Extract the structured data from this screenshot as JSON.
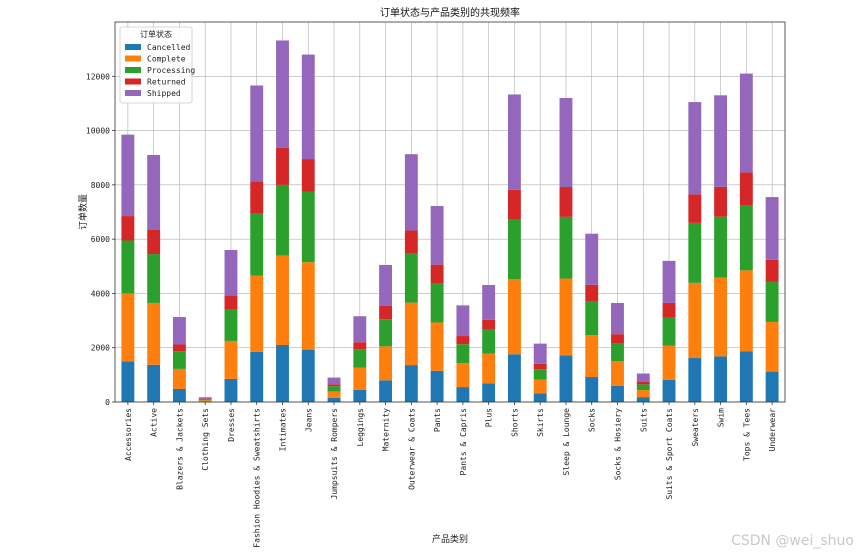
{
  "watermark": "CSDN @wei_shuo",
  "chart_data": {
    "type": "bar",
    "stacked": true,
    "title": "订单状态与产品类别的共现频率",
    "xlabel": "产品类别",
    "ylabel": "订单数量",
    "ylim": [
      0,
      14000
    ],
    "yticks": [
      0,
      2000,
      4000,
      6000,
      8000,
      10000,
      12000
    ],
    "grid": true,
    "legend_title": "订单状态",
    "legend_position": "top-left",
    "categories": [
      "Accessories",
      "Active",
      "Blazers & Jackets",
      "Clothing Sets",
      "Dresses",
      "Fashion Hoodies & Sweatshirts",
      "Intimates",
      "Jeans",
      "Jumpsuits & Rompers",
      "Leggings",
      "Maternity",
      "Outerwear & Coats",
      "Pants",
      "Pants & Capris",
      "Plus",
      "Shorts",
      "Skirts",
      "Sleep & Lounge",
      "Socks",
      "Socks & Hosiery",
      "Suits",
      "Suits & Sport Coats",
      "Sweaters",
      "Swim",
      "Tops & Tees",
      "Underwear"
    ],
    "series": [
      {
        "name": "Cancelled",
        "color": "#1f77b4",
        "values": [
          1500,
          1370,
          480,
          25,
          850,
          1850,
          2100,
          1930,
          150,
          450,
          800,
          1360,
          1150,
          550,
          680,
          1760,
          320,
          1720,
          920,
          600,
          180,
          820,
          1620,
          1680,
          1860,
          1120
        ]
      },
      {
        "name": "Complete",
        "color": "#ff7f0e",
        "values": [
          2500,
          2280,
          740,
          40,
          1400,
          2800,
          3300,
          3220,
          240,
          820,
          1250,
          2300,
          1780,
          880,
          1100,
          2760,
          510,
          2830,
          1540,
          900,
          260,
          1250,
          2770,
          2900,
          2990,
          1830
        ]
      },
      {
        "name": "Processing",
        "color": "#2ca02c",
        "values": [
          1950,
          1800,
          650,
          35,
          1150,
          2290,
          2600,
          2590,
          190,
          680,
          1000,
          1800,
          1430,
          700,
          880,
          2200,
          380,
          2270,
          1260,
          650,
          210,
          1030,
          2210,
          2250,
          2380,
          1490
        ]
      },
      {
        "name": "Returned",
        "color": "#d62728",
        "values": [
          900,
          900,
          250,
          25,
          520,
          1190,
          1370,
          1210,
          70,
          250,
          500,
          860,
          700,
          300,
          370,
          1100,
          200,
          1100,
          600,
          350,
          100,
          550,
          1050,
          1100,
          1230,
          800
        ]
      },
      {
        "name": "Shipped",
        "color": "#9467bd",
        "values": [
          3000,
          2750,
          1010,
          50,
          1680,
          3530,
          3950,
          3850,
          250,
          960,
          1500,
          2810,
          2160,
          1130,
          1280,
          3510,
          740,
          3280,
          1880,
          1150,
          300,
          1550,
          3400,
          3370,
          3640,
          2310
        ]
      }
    ]
  }
}
